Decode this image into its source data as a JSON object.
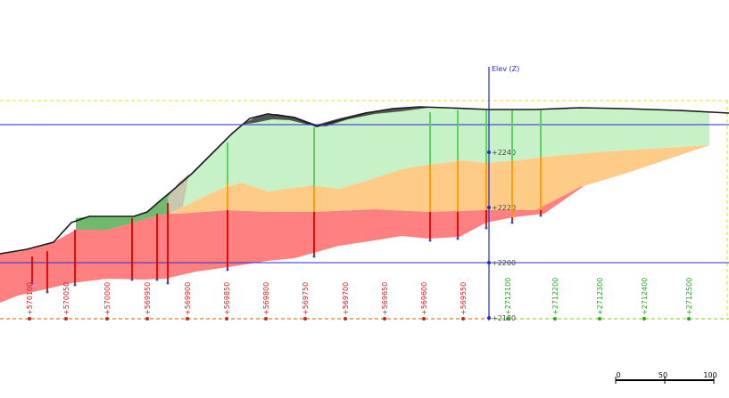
{
  "axis": {
    "label": "Elev (Z)",
    "elevation_ticks": [
      "+2240",
      "+2220",
      "+2200",
      "+2180"
    ]
  },
  "stations_left": [
    "570100",
    "570050",
    "570000",
    "569950",
    "569900",
    "569850",
    "569800",
    "569750",
    "569700",
    "569650",
    "569600",
    "569550"
  ],
  "stations_right": [
    "2712100",
    "2712200",
    "2712300",
    "2712400",
    "2712500"
  ],
  "scale_bar": {
    "labels": [
      "0",
      "50",
      "100"
    ]
  },
  "layers": [
    {
      "name": "green",
      "color": "#c7f2c7"
    },
    {
      "name": "orange",
      "color": "#ffcc88"
    },
    {
      "name": "red",
      "color": "#ff8080"
    }
  ],
  "colors": {
    "axis_blue": "#2a2acc",
    "ground_line": "#1a1a1a",
    "left_station_color": "#cc2222",
    "right_station_color": "#22aa22",
    "dashed_yellow": "#e6e600"
  }
}
